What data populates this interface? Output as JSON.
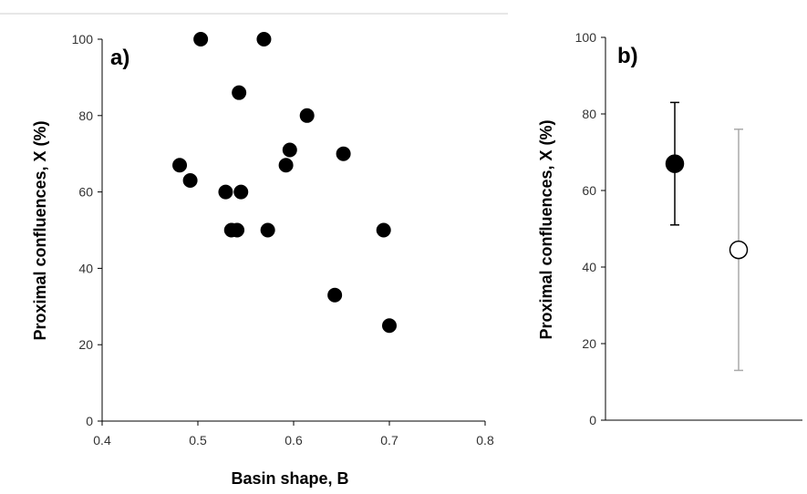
{
  "chart_data": [
    {
      "type": "scatter",
      "panel_label": "a)",
      "xlabel": "Basin shape, B",
      "ylabel": "Proximal confluences, X (%)",
      "xlim": [
        0.4,
        0.8
      ],
      "ylim": [
        0,
        100
      ],
      "xticks": [
        "0.4",
        "0.5",
        "0.6",
        "0.7",
        "0.8"
      ],
      "yticks": [
        "0",
        "20",
        "40",
        "60",
        "80",
        "100"
      ],
      "grid": false,
      "marker_color": "#000000",
      "points": [
        {
          "x": 0.503,
          "y": 100
        },
        {
          "x": 0.569,
          "y": 100
        },
        {
          "x": 0.543,
          "y": 86
        },
        {
          "x": 0.614,
          "y": 80
        },
        {
          "x": 0.596,
          "y": 71
        },
        {
          "x": 0.652,
          "y": 70
        },
        {
          "x": 0.481,
          "y": 67
        },
        {
          "x": 0.592,
          "y": 67
        },
        {
          "x": 0.492,
          "y": 63
        },
        {
          "x": 0.529,
          "y": 60
        },
        {
          "x": 0.545,
          "y": 60
        },
        {
          "x": 0.535,
          "y": 50
        },
        {
          "x": 0.541,
          "y": 50
        },
        {
          "x": 0.573,
          "y": 50
        },
        {
          "x": 0.694,
          "y": 50
        },
        {
          "x": 0.643,
          "y": 33
        },
        {
          "x": 0.7,
          "y": 25
        }
      ]
    },
    {
      "type": "scatter",
      "panel_label": "b)",
      "xlabel": "",
      "ylabel": "Proximal confluences, X (%)",
      "ylim": [
        0,
        100
      ],
      "yticks": [
        "0",
        "20",
        "40",
        "60",
        "80",
        "100"
      ],
      "grid": false,
      "points": [
        {
          "x": 1,
          "y": 67,
          "err_low": 51,
          "err_high": 83,
          "fill": "#000000",
          "bar_color": "#000000"
        },
        {
          "x": 2,
          "y": 44.5,
          "err_low": 13,
          "err_high": 76,
          "fill": "#ffffff",
          "bar_color": "#aaaaaa"
        }
      ]
    }
  ]
}
